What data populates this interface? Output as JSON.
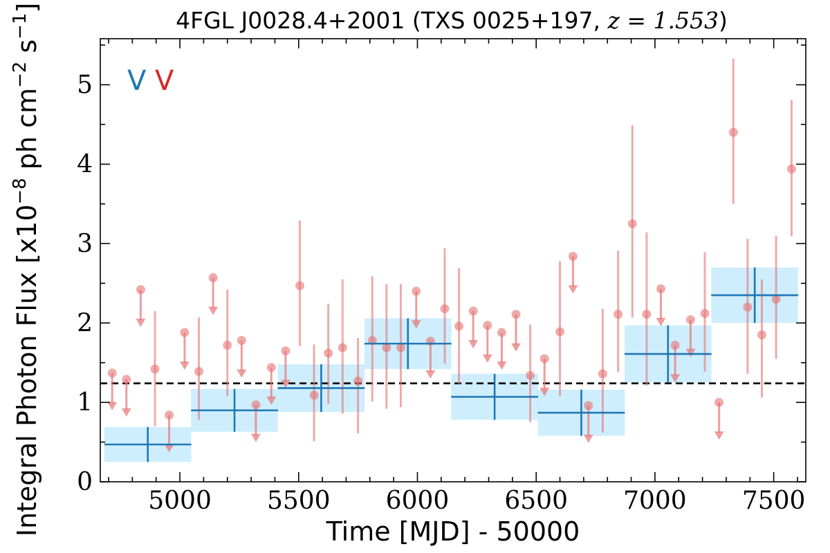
{
  "chart_data": {
    "type": "scatter",
    "title": "4FGL J0028.4+2001 (TXS 0025+197, z = 1.553)",
    "title_parts": {
      "prefix": "4FGL J0028.4+2001 (TXS 0025+197, ",
      "z_symbol": "z",
      "equals": " = ",
      "z_value": "1.553",
      "suffix": ")"
    },
    "xlabel": "Time [MJD] - 50000",
    "ylabel": "Integral Photon Flux [x10",
    "ylabel_exp1": "−8",
    "ylabel_mid": " ph cm",
    "ylabel_exp2": "−2",
    "ylabel_mid2": " s",
    "ylabel_exp3": "−1",
    "ylabel_end": "]",
    "xlim": [
      4665,
      7635
    ],
    "ylim": [
      0,
      5.58
    ],
    "xticks": [
      5000,
      5500,
      6000,
      6500,
      7000,
      7500
    ],
    "xtick_labels": [
      "5000",
      "5500",
      "6000",
      "6500",
      "7000",
      "7500"
    ],
    "yticks": [
      0,
      1,
      2,
      3,
      4,
      5
    ],
    "ytick_labels": [
      "0",
      "1",
      "2",
      "3",
      "4",
      "5"
    ],
    "mean_flux": 1.24,
    "legend": [
      {
        "label": "V",
        "color": "#1f77b4"
      },
      {
        "label": "V",
        "color": "#d62728"
      }
    ],
    "colors": {
      "short_bin": "#e57373",
      "long_bin_line": "#1f77b4",
      "long_bin_box": "#b3e5fc",
      "mean_line": "#000000"
    },
    "long_bins": [
      {
        "x": 4865,
        "xerr": 183,
        "y": 0.47,
        "yerr": 0.22
      },
      {
        "x": 5230,
        "xerr": 183,
        "y": 0.9,
        "yerr": 0.27
      },
      {
        "x": 5595,
        "xerr": 183,
        "y": 1.18,
        "yerr": 0.3
      },
      {
        "x": 5960,
        "xerr": 183,
        "y": 1.74,
        "yerr": 0.32
      },
      {
        "x": 6325,
        "xerr": 183,
        "y": 1.07,
        "yerr": 0.29
      },
      {
        "x": 6690,
        "xerr": 183,
        "y": 0.87,
        "yerr": 0.29
      },
      {
        "x": 7055,
        "xerr": 183,
        "y": 1.61,
        "yerr": 0.36
      },
      {
        "x": 7420,
        "xerr": 183,
        "y": 2.35,
        "yerr": 0.35
      }
    ],
    "detections": [
      {
        "x": 4895,
        "y": 1.42,
        "lo": 0.7,
        "hi": 2.15
      },
      {
        "x": 5080,
        "y": 1.39,
        "lo": 0.78,
        "hi": 2.07
      },
      {
        "x": 5200,
        "y": 1.72,
        "lo": 1.08,
        "hi": 2.42
      },
      {
        "x": 5505,
        "y": 2.47,
        "lo": 1.71,
        "hi": 3.29
      },
      {
        "x": 5565,
        "y": 1.09,
        "lo": 0.51,
        "hi": 1.73
      },
      {
        "x": 5625,
        "y": 1.62,
        "lo": 0.98,
        "hi": 2.24
      },
      {
        "x": 5685,
        "y": 1.69,
        "lo": 0.86,
        "hi": 2.55
      },
      {
        "x": 5750,
        "y": 1.27,
        "lo": 0.61,
        "hi": 1.81
      },
      {
        "x": 5810,
        "y": 1.78,
        "lo": 1.01,
        "hi": 2.59
      },
      {
        "x": 5870,
        "y": 1.69,
        "lo": 0.92,
        "hi": 2.49
      },
      {
        "x": 5930,
        "y": 1.69,
        "lo": 0.94,
        "hi": 2.49
      },
      {
        "x": 6115,
        "y": 2.18,
        "lo": 1.49,
        "hi": 2.94
      },
      {
        "x": 6175,
        "y": 1.96,
        "lo": 1.23,
        "hi": 2.69
      },
      {
        "x": 6475,
        "y": 1.34,
        "lo": 0.75,
        "hi": 1.98
      },
      {
        "x": 6600,
        "y": 1.89,
        "lo": 1.08,
        "hi": 2.78
      },
      {
        "x": 6780,
        "y": 1.36,
        "lo": 0.62,
        "hi": 2.18
      },
      {
        "x": 6845,
        "y": 2.11,
        "lo": 1.38,
        "hi": 2.91
      },
      {
        "x": 6905,
        "y": 3.25,
        "lo": 2.07,
        "hi": 4.49
      },
      {
        "x": 6965,
        "y": 2.11,
        "lo": 1.21,
        "hi": 3.14
      },
      {
        "x": 7210,
        "y": 2.12,
        "lo": 1.39,
        "hi": 2.89
      },
      {
        "x": 7330,
        "y": 4.4,
        "lo": 3.5,
        "hi": 5.33
      },
      {
        "x": 7390,
        "y": 2.2,
        "lo": 1.36,
        "hi": 3.06
      },
      {
        "x": 7450,
        "y": 1.85,
        "lo": 1.06,
        "hi": 2.55
      },
      {
        "x": 7510,
        "y": 2.3,
        "lo": 1.55,
        "hi": 3.1
      },
      {
        "x": 7575,
        "y": 3.94,
        "lo": 3.09,
        "hi": 4.81
      }
    ],
    "upper_limits": [
      {
        "x": 4715,
        "y": 1.37
      },
      {
        "x": 4775,
        "y": 1.29
      },
      {
        "x": 4835,
        "y": 2.42
      },
      {
        "x": 4955,
        "y": 0.84
      },
      {
        "x": 5020,
        "y": 1.88
      },
      {
        "x": 5140,
        "y": 2.57
      },
      {
        "x": 5260,
        "y": 1.78
      },
      {
        "x": 5320,
        "y": 0.97
      },
      {
        "x": 5385,
        "y": 1.44
      },
      {
        "x": 5445,
        "y": 1.65
      },
      {
        "x": 5995,
        "y": 2.4
      },
      {
        "x": 6055,
        "y": 1.77
      },
      {
        "x": 6235,
        "y": 2.15
      },
      {
        "x": 6295,
        "y": 1.97
      },
      {
        "x": 6355,
        "y": 1.88
      },
      {
        "x": 6415,
        "y": 2.11
      },
      {
        "x": 6535,
        "y": 1.55
      },
      {
        "x": 6655,
        "y": 2.84
      },
      {
        "x": 6720,
        "y": 0.96
      },
      {
        "x": 7025,
        "y": 2.43
      },
      {
        "x": 7085,
        "y": 1.72
      },
      {
        "x": 7150,
        "y": 2.04
      },
      {
        "x": 7270,
        "y": 1.0
      }
    ]
  }
}
